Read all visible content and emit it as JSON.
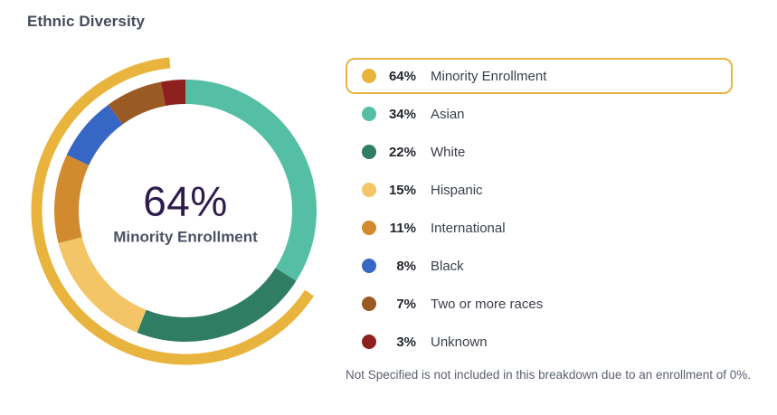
{
  "title": "Ethnic Diversity",
  "donut_center": {
    "value": "64%",
    "label": "Minority Enrollment"
  },
  "footnote": "Not Specified is not included in this breakdown due to an enrollment of 0%.",
  "colors": {
    "highlight_border": "#E9B43E",
    "title_text": "#454B5C",
    "center_value_text": "#2E1C4E",
    "center_label_text": "#4A5264",
    "footnote_text": "#5B6170"
  },
  "chart_data": {
    "type": "pie",
    "subtype": "donut-with-outer-highlight-arc",
    "title": "Ethnic Diversity",
    "center_value": "64%",
    "center_label": "Minority Enrollment",
    "start_deg": 0,
    "direction": "clockwise",
    "legend_position": "right",
    "outer_arc": {
      "label": "Minority Enrollment",
      "value_pct": 64,
      "color": "#E9B43E",
      "end_deg": 354
    },
    "segments": [
      {
        "label": "Asian",
        "value_pct": 34,
        "color": "#55BFA5"
      },
      {
        "label": "White",
        "value_pct": 22,
        "color": "#2F7D62"
      },
      {
        "label": "Hispanic",
        "value_pct": 15,
        "color": "#F4C566"
      },
      {
        "label": "International",
        "value_pct": 11,
        "color": "#D28A2E"
      },
      {
        "label": "Black",
        "value_pct": 8,
        "color": "#3767C4"
      },
      {
        "label": "Two or more races",
        "value_pct": 7,
        "color": "#9A5A24"
      },
      {
        "label": "Unknown",
        "value_pct": 3,
        "color": "#8E211E"
      }
    ]
  },
  "legend": {
    "rows": [
      {
        "pct": "64%",
        "label": "Minority Enrollment",
        "color": "#E9B43E",
        "highlighted": true
      },
      {
        "pct": "34%",
        "label": "Asian",
        "color": "#55BFA5",
        "highlighted": false
      },
      {
        "pct": "22%",
        "label": "White",
        "color": "#2F7D62",
        "highlighted": false
      },
      {
        "pct": "15%",
        "label": "Hispanic",
        "color": "#F4C566",
        "highlighted": false
      },
      {
        "pct": "11%",
        "label": "International",
        "color": "#D28A2E",
        "highlighted": false
      },
      {
        "pct": "8%",
        "label": "Black",
        "color": "#3767C4",
        "highlighted": false
      },
      {
        "pct": "7%",
        "label": "Two or more races",
        "color": "#9A5A24",
        "highlighted": false
      },
      {
        "pct": "3%",
        "label": "Unknown",
        "color": "#8E211E",
        "highlighted": false
      }
    ]
  }
}
